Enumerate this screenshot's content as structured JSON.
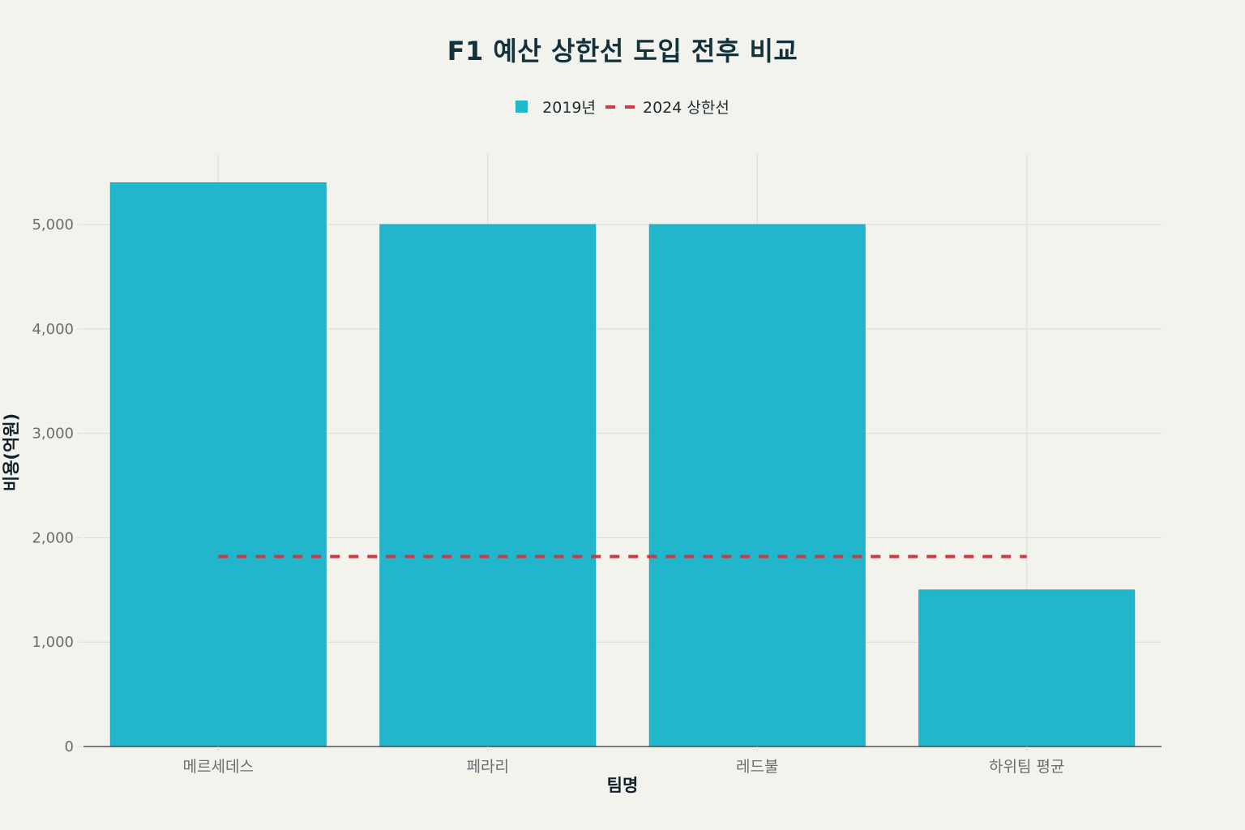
{
  "chart_data": {
    "type": "bar",
    "title": "F1 예산 상한선 도입 전후 비교",
    "xlabel": "팀명",
    "ylabel": "비용(억원)",
    "categories": [
      "메르세데스",
      "페라리",
      "레드불",
      "하위팀 평균"
    ],
    "series": [
      {
        "name": "2019년",
        "type": "bar",
        "color": "#21b6cc",
        "values": [
          5400,
          5000,
          5000,
          1500
        ]
      },
      {
        "name": "2024 상한선",
        "type": "line",
        "style": "dashed",
        "color": "#d0393f",
        "values": [
          1820,
          1820,
          1820,
          1820
        ]
      }
    ],
    "yticks": [
      0,
      1000,
      2000,
      3000,
      4000,
      5000
    ],
    "ytick_labels": [
      "0",
      "1,000",
      "2,000",
      "3,000",
      "4,000",
      "5,000"
    ],
    "ylim": [
      0,
      5680
    ],
    "grid": true,
    "legend_position": "top-center"
  },
  "legend": {
    "bar_label": "2019년",
    "line_label": "2024 상한선"
  }
}
